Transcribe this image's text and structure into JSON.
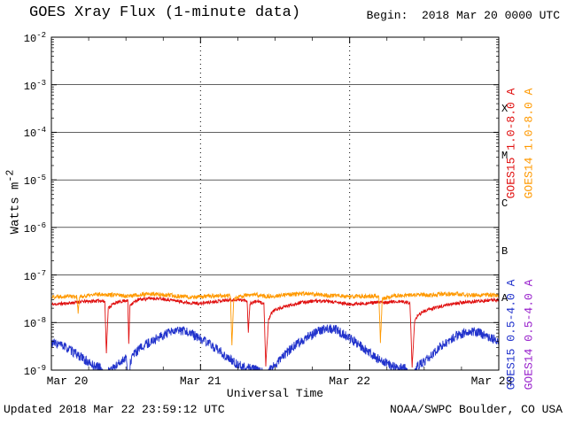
{
  "header": {
    "title": "GOES Xray Flux (1-minute data)",
    "begin_label": "Begin:  2018 Mar 20 0000 UTC"
  },
  "footer": {
    "updated": "Updated 2018 Mar 22 23:59:12 UTC",
    "source": "NOAA/SWPC Boulder, CO USA"
  },
  "chart_data": {
    "type": "line",
    "title": "GOES Xray Flux (1-minute data)",
    "xlabel": "Universal Time",
    "ylabel": {
      "prefix": "Watts m",
      "exponent": "-2"
    },
    "y_scale": "log10",
    "y_range_log": [
      -9,
      -2
    ],
    "x_range_hours": [
      0,
      72
    ],
    "x_ticks": [
      {
        "hour": 0,
        "label": "Mar 20"
      },
      {
        "hour": 24,
        "label": "Mar 21"
      },
      {
        "hour": 48,
        "label": "Mar 22"
      },
      {
        "hour": 72,
        "label": "Mar 23"
      }
    ],
    "y_ticks": [
      "-2",
      "-3",
      "-4",
      "-5",
      "-6",
      "-7",
      "-8",
      "-9"
    ],
    "flare_classes": [
      {
        "label": "X",
        "log_mid": -3.5
      },
      {
        "label": "M",
        "log_mid": -4.5
      },
      {
        "label": "C",
        "log_mid": -5.5
      },
      {
        "label": "B",
        "log_mid": -6.5
      },
      {
        "label": "A",
        "log_mid": -7.5
      }
    ],
    "series": [
      {
        "name": "GOES15 1.0-8.0 A",
        "color": "#e01010",
        "z": 1,
        "seed": 11,
        "noise": 0.035,
        "points": [
          [
            0,
            -7.62
          ],
          [
            2,
            -7.6
          ],
          [
            5,
            -7.56
          ],
          [
            8,
            -7.54
          ],
          [
            8.6,
            -7.56
          ],
          [
            8.85,
            -8.62
          ],
          [
            9.15,
            -7.7
          ],
          [
            10,
            -7.6
          ],
          [
            12,
            -7.53
          ],
          [
            12.3,
            -7.55
          ],
          [
            12.45,
            -8.45
          ],
          [
            12.65,
            -7.62
          ],
          [
            14,
            -7.52
          ],
          [
            16,
            -7.49
          ],
          [
            18,
            -7.5
          ],
          [
            20,
            -7.54
          ],
          [
            22,
            -7.58
          ],
          [
            24,
            -7.6
          ],
          [
            26,
            -7.56
          ],
          [
            28,
            -7.53
          ],
          [
            30,
            -7.52
          ],
          [
            31.5,
            -7.54
          ],
          [
            31.7,
            -8.2
          ],
          [
            31.95,
            -7.6
          ],
          [
            33,
            -7.55
          ],
          [
            34.2,
            -7.6
          ],
          [
            34.5,
            -8.9
          ],
          [
            34.95,
            -7.95
          ],
          [
            35.4,
            -7.8
          ],
          [
            36,
            -7.73
          ],
          [
            38,
            -7.65
          ],
          [
            40,
            -7.58
          ],
          [
            42,
            -7.55
          ],
          [
            44,
            -7.55
          ],
          [
            46,
            -7.58
          ],
          [
            48,
            -7.62
          ],
          [
            50,
            -7.6
          ],
          [
            52,
            -7.58
          ],
          [
            54,
            -7.57
          ],
          [
            56,
            -7.56
          ],
          [
            57.7,
            -7.58
          ],
          [
            58.05,
            -8.95
          ],
          [
            58.45,
            -8.0
          ],
          [
            58.9,
            -7.85
          ],
          [
            60,
            -7.76
          ],
          [
            62,
            -7.68
          ],
          [
            64,
            -7.62
          ],
          [
            66,
            -7.58
          ],
          [
            68,
            -7.56
          ],
          [
            70,
            -7.54
          ],
          [
            72,
            -7.52
          ]
        ]
      },
      {
        "name": "GOES14 1.0-8.0 A",
        "color": "#ff9900",
        "z": 2,
        "seed": 22,
        "noise": 0.045,
        "points": [
          [
            0,
            -7.46
          ],
          [
            2,
            -7.44
          ],
          [
            4.1,
            -7.45
          ],
          [
            4.3,
            -7.8
          ],
          [
            4.55,
            -7.46
          ],
          [
            6,
            -7.43
          ],
          [
            8,
            -7.4
          ],
          [
            10,
            -7.42
          ],
          [
            12,
            -7.44
          ],
          [
            14,
            -7.42
          ],
          [
            16,
            -7.4
          ],
          [
            18,
            -7.42
          ],
          [
            20,
            -7.44
          ],
          [
            22,
            -7.46
          ],
          [
            24,
            -7.46
          ],
          [
            26,
            -7.44
          ],
          [
            28.8,
            -7.44
          ],
          [
            29.05,
            -8.45
          ],
          [
            29.35,
            -7.5
          ],
          [
            31,
            -7.43
          ],
          [
            33,
            -7.42
          ],
          [
            34.5,
            -7.45
          ],
          [
            36,
            -7.44
          ],
          [
            38,
            -7.42
          ],
          [
            40,
            -7.4
          ],
          [
            42,
            -7.4
          ],
          [
            44,
            -7.42
          ],
          [
            46,
            -7.44
          ],
          [
            48,
            -7.46
          ],
          [
            50,
            -7.44
          ],
          [
            52.7,
            -7.44
          ],
          [
            52.95,
            -8.4
          ],
          [
            53.25,
            -7.5
          ],
          [
            55,
            -7.44
          ],
          [
            57,
            -7.43
          ],
          [
            59,
            -7.42
          ],
          [
            61,
            -7.42
          ],
          [
            63,
            -7.4
          ],
          [
            65,
            -7.4
          ],
          [
            67,
            -7.42
          ],
          [
            69,
            -7.42
          ],
          [
            72,
            -7.42
          ]
        ]
      },
      {
        "name": "GOES15 0.5-4.0 A",
        "color": "#2233cc",
        "z": 0,
        "seed": 33,
        "noise": 0.1,
        "points": [
          [
            0,
            -8.42
          ],
          [
            1,
            -8.45
          ],
          [
            2,
            -8.5
          ],
          [
            3,
            -8.58
          ],
          [
            4,
            -8.66
          ],
          [
            5,
            -8.75
          ],
          [
            6,
            -8.85
          ],
          [
            7,
            -8.92
          ],
          [
            8,
            -8.95
          ],
          [
            8.85,
            -9.3
          ],
          [
            9.2,
            -9.0
          ],
          [
            10,
            -8.95
          ],
          [
            11,
            -8.85
          ],
          [
            12,
            -8.72
          ],
          [
            12.45,
            -9.25
          ],
          [
            12.7,
            -8.85
          ],
          [
            13,
            -8.7
          ],
          [
            14,
            -8.58
          ],
          [
            15,
            -8.48
          ],
          [
            16,
            -8.4
          ],
          [
            17,
            -8.33
          ],
          [
            18,
            -8.27
          ],
          [
            19,
            -8.22
          ],
          [
            20,
            -8.18
          ],
          [
            21,
            -8.17
          ],
          [
            22,
            -8.2
          ],
          [
            23,
            -8.27
          ],
          [
            24,
            -8.34
          ],
          [
            25,
            -8.42
          ],
          [
            26,
            -8.5
          ],
          [
            27,
            -8.6
          ],
          [
            28,
            -8.7
          ],
          [
            29,
            -8.8
          ],
          [
            30,
            -8.88
          ],
          [
            31,
            -8.93
          ],
          [
            32,
            -8.97
          ],
          [
            33,
            -9.0
          ],
          [
            34.1,
            -9.02
          ],
          [
            34.5,
            -9.35
          ],
          [
            35,
            -9.0
          ],
          [
            36,
            -8.9
          ],
          [
            37,
            -8.75
          ],
          [
            38,
            -8.62
          ],
          [
            39,
            -8.5
          ],
          [
            40,
            -8.4
          ],
          [
            41,
            -8.32
          ],
          [
            42,
            -8.25
          ],
          [
            43,
            -8.18
          ],
          [
            44,
            -8.13
          ],
          [
            45,
            -8.12
          ],
          [
            46,
            -8.17
          ],
          [
            47,
            -8.25
          ],
          [
            48,
            -8.33
          ],
          [
            49,
            -8.42
          ],
          [
            50,
            -8.52
          ],
          [
            51,
            -8.62
          ],
          [
            52,
            -8.72
          ],
          [
            53,
            -8.8
          ],
          [
            54,
            -8.87
          ],
          [
            55,
            -8.92
          ],
          [
            56,
            -8.95
          ],
          [
            57,
            -8.97
          ],
          [
            58.05,
            -9.35
          ],
          [
            58.55,
            -9.0
          ],
          [
            59,
            -8.92
          ],
          [
            60,
            -8.82
          ],
          [
            61,
            -8.7
          ],
          [
            62,
            -8.58
          ],
          [
            63,
            -8.47
          ],
          [
            64,
            -8.37
          ],
          [
            65,
            -8.3
          ],
          [
            66,
            -8.24
          ],
          [
            67,
            -8.2
          ],
          [
            68,
            -8.18
          ],
          [
            69,
            -8.22
          ],
          [
            70,
            -8.28
          ],
          [
            71,
            -8.34
          ],
          [
            72,
            -8.38
          ]
        ]
      },
      {
        "name": "GOES14 0.5-4.0 A",
        "color": "#9922cc",
        "z": 0,
        "seed": 44,
        "noise": 0.1,
        "points": []
      }
    ]
  }
}
